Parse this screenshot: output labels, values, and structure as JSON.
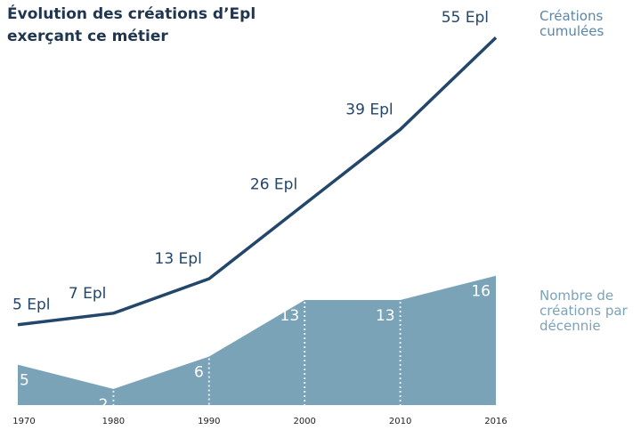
{
  "chart_data": {
    "type": "line",
    "title": "Évolution des créations d’Epl exerçant ce métier",
    "categories": [
      "1970",
      "1980",
      "1990",
      "2000",
      "2010",
      "2016"
    ],
    "series": [
      {
        "name": "Créations cumulées",
        "color": "#23466b",
        "values": [
          5,
          7,
          13,
          26,
          39,
          55
        ],
        "value_labels": [
          "5 Epl",
          "7 Epl",
          "13 Epl",
          "26 Epl",
          "39 Epl",
          "55 Epl"
        ]
      },
      {
        "name": "Nombre de créations par décennie",
        "color": "#7ba3b8",
        "axis": "y2",
        "area": true,
        "values": [
          5,
          2,
          6,
          13,
          13,
          16
        ]
      }
    ],
    "ylim": [
      -9,
      60
    ],
    "y2lim": [
      0,
      49
    ]
  }
}
